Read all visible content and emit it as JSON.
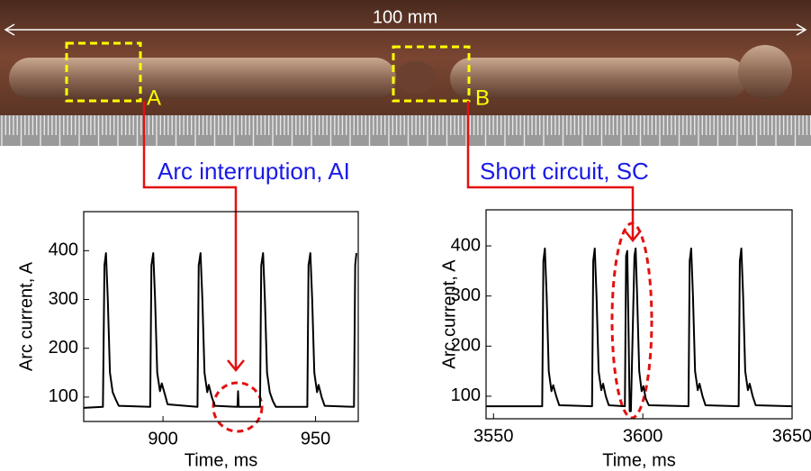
{
  "photo": {
    "scale_label": "100 mm"
  },
  "chart_data": [
    {
      "type": "line",
      "marker": "A",
      "annotation": "Arc interruption, AI",
      "x_label": "Time, ms",
      "y_label": "Arc current, A",
      "xlim": [
        874,
        964
      ],
      "ylim": [
        50,
        480
      ],
      "xticks": [
        900,
        950
      ],
      "yticks": [
        100,
        200,
        300,
        400
      ],
      "series": [
        {
          "color": "#000000",
          "x": [
            874,
            880.3,
            880.8,
            881.3,
            881.9,
            882.6,
            883.5,
            884.5,
            885.5,
            895.8,
            896.2,
            896.8,
            897.4,
            898.1,
            899,
            899.6,
            900.5,
            901.5,
            911.3,
            911.7,
            912.3,
            912.9,
            913.6,
            914.5,
            915,
            916,
            917,
            924.4,
            924.6,
            924.8,
            931.8,
            932.2,
            932.8,
            933.4,
            934.1,
            935,
            936,
            937,
            947.3,
            947.7,
            948.3,
            948.9,
            949.6,
            950.5,
            951,
            952,
            953,
            962.6,
            963,
            963.4
          ],
          "values": [
            78,
            80,
            370,
            395,
            300,
            150,
            110,
            95,
            82,
            80,
            370,
            395,
            300,
            150,
            112,
            128,
            108,
            85,
            80,
            370,
            395,
            300,
            150,
            110,
            125,
            100,
            82,
            80,
            112,
            80,
            80,
            370,
            395,
            300,
            150,
            110,
            92,
            80,
            80,
            370,
            395,
            300,
            150,
            110,
            125,
            100,
            82,
            80,
            370,
            395
          ]
        }
      ]
    },
    {
      "type": "line",
      "marker": "B",
      "annotation": "Short circuit, SC",
      "x_label": "Time, ms",
      "y_label": "Arc current, A",
      "xlim": [
        3547.5,
        3650
      ],
      "ylim": [
        55,
        472
      ],
      "xticks": [
        3550,
        3600,
        3650
      ],
      "yticks": [
        100,
        200,
        300,
        400
      ],
      "series": [
        {
          "color": "#000000",
          "x": [
            3547.5,
            3566.3,
            3566.7,
            3567.2,
            3567.8,
            3568.5,
            3569.4,
            3570,
            3571,
            3572,
            3583,
            3583.4,
            3583.9,
            3584.5,
            3585.2,
            3586.1,
            3586.7,
            3587.6,
            3588.6,
            3594,
            3594.4,
            3594.8,
            3595.3,
            3595.6,
            3596,
            3597.2,
            3597.6,
            3598.1,
            3598.8,
            3599.6,
            3600.2,
            3601,
            3602,
            3615.3,
            3615.7,
            3616.2,
            3616.8,
            3617.5,
            3618.4,
            3619,
            3620,
            3621,
            3632.1,
            3632.5,
            3633,
            3633.6,
            3634.3,
            3635.2,
            3635.8,
            3636.8,
            3637.8,
            3650
          ],
          "values": [
            80,
            80,
            370,
            395,
            300,
            150,
            110,
            122,
            100,
            82,
            80,
            370,
            395,
            300,
            150,
            112,
            125,
            100,
            82,
            80,
            380,
            390,
            200,
            70,
            70,
            380,
            395,
            300,
            150,
            110,
            120,
            95,
            82,
            80,
            370,
            395,
            300,
            150,
            112,
            125,
            100,
            82,
            80,
            370,
            395,
            300,
            150,
            112,
            125,
            100,
            82,
            80
          ]
        }
      ]
    }
  ]
}
